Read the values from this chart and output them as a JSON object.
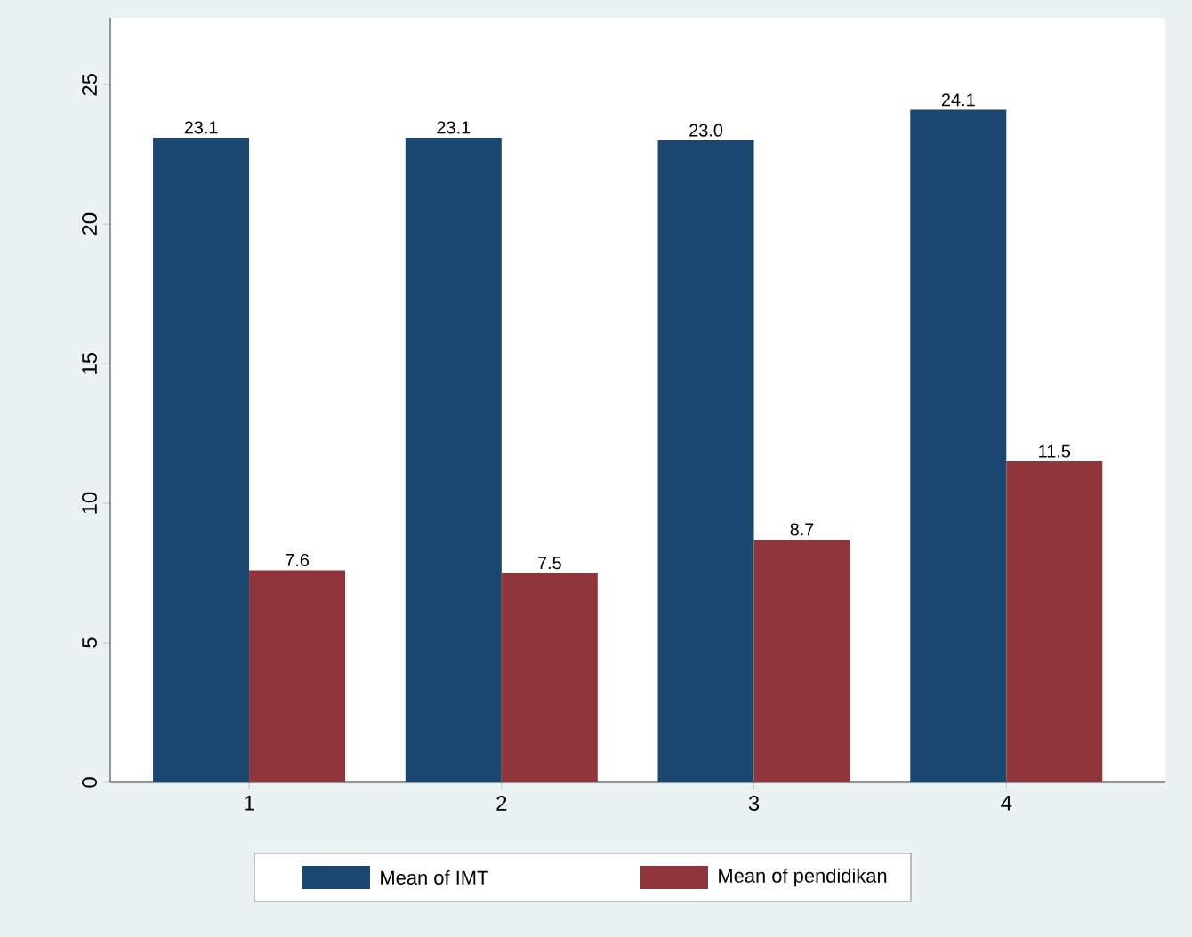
{
  "chart_data": {
    "type": "bar",
    "categories": [
      "1",
      "2",
      "3",
      "4"
    ],
    "series": [
      {
        "name": "Mean of IMT",
        "color": "#1a476f",
        "values": [
          23.1,
          23.1,
          23.0,
          24.1
        ],
        "value_labels": [
          "23.1",
          "23.1",
          "23.0",
          "24.1"
        ]
      },
      {
        "name": "Mean of pendidikan",
        "color": "#90353b",
        "values": [
          7.6,
          7.5,
          8.7,
          11.5
        ],
        "value_labels": [
          "7.6",
          "7.5",
          "8.7",
          "11.5"
        ]
      }
    ],
    "ylim": [
      0,
      27.4
    ],
    "yticks": [
      0,
      5,
      10,
      15,
      20,
      25
    ],
    "grid": false,
    "legend": "bottom"
  }
}
